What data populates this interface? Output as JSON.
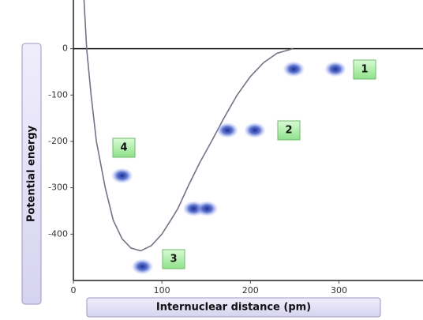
{
  "chart_data": {
    "type": "line",
    "xlabel": "Internuclear distance (pm)",
    "ylabel": "Potential energy",
    "x": [
      12,
      15,
      20,
      26,
      36,
      45,
      55,
      65,
      76,
      88,
      100,
      110,
      118,
      130,
      143,
      156,
      170,
      185,
      200,
      215,
      230,
      248
    ],
    "series": [
      {
        "color": "#77708a",
        "values": [
          105,
          0,
          -100,
          -200,
          -300,
          -370,
          -410,
          -430,
          -436,
          -425,
          -400,
          -370,
          -345,
          -295,
          -245,
          -200,
          -150,
          -100,
          -60,
          -30,
          -10,
          0
        ]
      }
    ],
    "atoms": {
      "x": [
        249,
        296,
        174,
        205,
        78,
        55,
        136,
        151
      ],
      "y": [
        -44,
        -44,
        -176,
        -176,
        -470,
        -274,
        -345,
        -345
      ],
      "color": "#3a55c8"
    },
    "annotations": [
      "1",
      "2",
      "3",
      "4"
    ],
    "xlim": [
      0,
      395
    ],
    "ylim": [
      -500,
      105
    ],
    "xticks": [
      0,
      100,
      200,
      300
    ],
    "yticks": [
      0,
      -100,
      -200,
      -300,
      -400
    ]
  }
}
